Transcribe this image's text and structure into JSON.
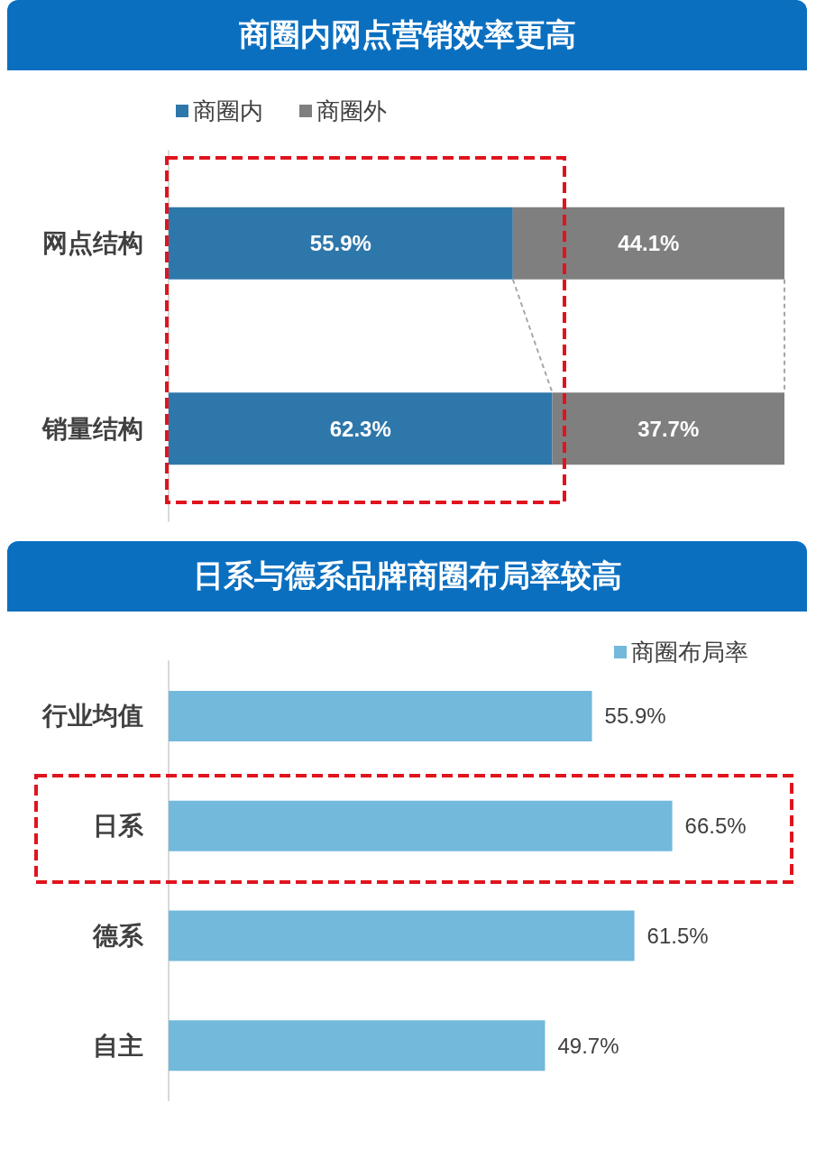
{
  "chart_data": [
    {
      "type": "bar",
      "title": "商圈内网点营销效率更高",
      "categories": [
        "网点结构",
        "销量结构"
      ],
      "orientation": "horizontal",
      "stacked": true,
      "xlim": [
        0,
        100
      ],
      "tick_labels": "y",
      "legend": "top left",
      "grid": false,
      "series": [
        {
          "name": "商圈内",
          "color": "#2e77ab",
          "values": [
            55.9,
            62.3
          ],
          "value_labels": [
            "55.9%",
            "62.3%"
          ]
        },
        {
          "name": "商圈外",
          "color": "#7f7f7f",
          "values": [
            44.1,
            37.7
          ],
          "value_labels": [
            "44.1%",
            "37.7%"
          ]
        }
      ]
    },
    {
      "type": "bar",
      "title": "日系与德系品牌商圈布局率较高",
      "categories": [
        "行业均值",
        "日系",
        "德系",
        "自主"
      ],
      "orientation": "horizontal",
      "tick_labels": "y",
      "legend": "top right",
      "grid": false,
      "series": [
        {
          "name": "商圈布局率",
          "color": "#72b9dc",
          "values": [
            55.9,
            66.5,
            61.5,
            49.7
          ],
          "value_labels": [
            "55.9%",
            "66.5%",
            "61.5%",
            "49.7%"
          ]
        }
      ]
    }
  ]
}
